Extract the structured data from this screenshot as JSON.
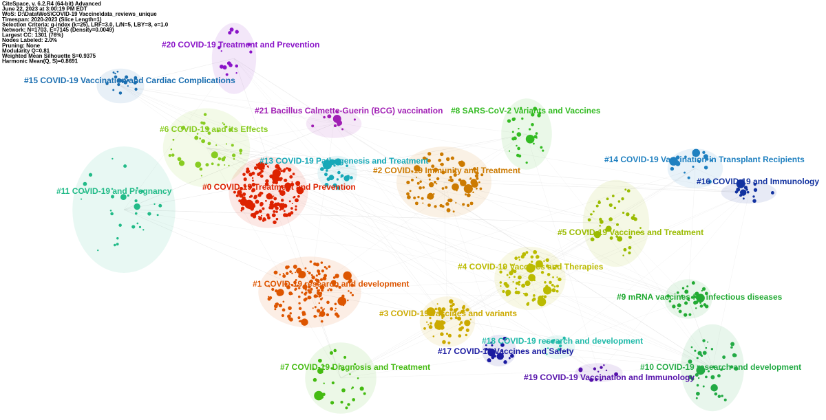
{
  "info": [
    "CiteSpace, v. 6.2.R4 (64-bit) Advanced",
    "June 22, 2023 at 3:00:19 PM EDT",
    "WoS: D:\\Data\\WoS\\COVID-19 Vaccine\\data_reviews_unique",
    "Timespan: 2020-2023 (Slice Length=1)",
    "Selection Criteria: g-index (k=25), LRF=3.0, L/N=5, LBY=8, e=1.0",
    "Network: N=1703, E=7145 (Density=0.0049)",
    "Largest CC: 1301 (76%)",
    "Nodes Labeled: 2.0%",
    "Pruning: None",
    "Modularity Q=0.81",
    "Weighted Mean Silhouette S=0.9375",
    "Harmonic Mean(Q, S)=0.8691"
  ],
  "clusters": [
    {
      "label": "#20 COVID-19 Treatment and Prevention"
    },
    {
      "label": "#15 COVID-19 Vaccination and Cardiac Complications"
    },
    {
      "label": "#21 Bacillus Calmette-Guerin (BCG) vaccination"
    },
    {
      "label": "#8 SARS-CoV-2 Variants and Vaccines"
    },
    {
      "label": "#6 COVID-19 and its Effects"
    },
    {
      "label": "#13 COVID-19 Pathogenesis and Treatment"
    },
    {
      "label": "#2 COVID-19 Immunity and Treatment"
    },
    {
      "label": "#14 COVID-19 Vaccination in Transplant Recipients"
    },
    {
      "label": "#16 COVID-19 and Immunology"
    },
    {
      "label": "#0 COVID-19 Treatment and Prevention"
    },
    {
      "label": "#11 COVID-19 and Pregnancy"
    },
    {
      "label": "#5 COVID-19 Vaccines and Treatment"
    },
    {
      "label": "#4 COVID-19 Vaccines and Therapies"
    },
    {
      "label": "#1 COVID-19 research and development"
    },
    {
      "label": "#9 mRNA vaccines for infectious diseases"
    },
    {
      "label": "#3 COVID-19 vaccines and variants"
    },
    {
      "label": "#18 COVID-19 research and development"
    },
    {
      "label": "#17 COVID-19 Vaccines and Safety"
    },
    {
      "label": "#7 COVID-19 Diagnosis and Treatment"
    },
    {
      "label": "#10 COVID-19 research and development"
    },
    {
      "label": "#19 COVID-19 Vaccination and Immunology"
    }
  ]
}
